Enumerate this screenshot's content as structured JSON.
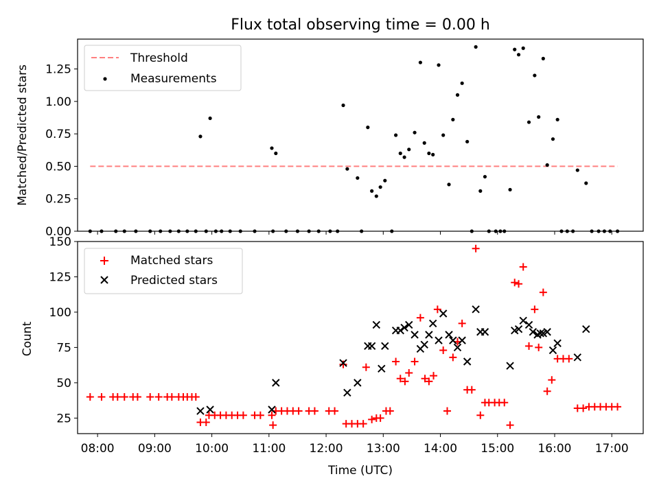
{
  "chart_data": [
    {
      "type": "scatter",
      "title": "Flux total observing time = 0.00 h",
      "xlabel": "",
      "ylabel": "Matched/Predicted stars",
      "xlim": [
        7.65,
        17.55
      ],
      "ylim": [
        0,
        1.48
      ],
      "yticks": [
        0.0,
        0.25,
        0.5,
        0.75,
        1.0,
        1.25
      ],
      "ytick_labels": [
        "0.00",
        "0.25",
        "0.50",
        "0.75",
        "1.00",
        "1.25"
      ],
      "legend_position": "upper-left",
      "threshold": {
        "name": "Threshold",
        "value": 0.5,
        "x_range": [
          7.87,
          17.1
        ],
        "color": "#ff7f7f"
      },
      "series": [
        {
          "name": "Measurements",
          "color": "#000000",
          "marker": "dot",
          "points": [
            [
              7.87,
              0
            ],
            [
              8.07,
              0
            ],
            [
              8.32,
              0
            ],
            [
              8.47,
              0
            ],
            [
              8.67,
              0
            ],
            [
              8.92,
              0
            ],
            [
              9.1,
              0
            ],
            [
              9.27,
              0
            ],
            [
              9.42,
              0
            ],
            [
              9.57,
              0
            ],
            [
              9.72,
              0
            ],
            [
              9.8,
              0.73
            ],
            [
              9.9,
              0
            ],
            [
              9.97,
              0.87
            ],
            [
              10.07,
              0
            ],
            [
              10.17,
              0
            ],
            [
              10.32,
              0
            ],
            [
              10.5,
              0
            ],
            [
              10.75,
              0
            ],
            [
              11.05,
              0.64
            ],
            [
              11.07,
              0
            ],
            [
              11.12,
              0.6
            ],
            [
              11.3,
              0
            ],
            [
              11.5,
              0
            ],
            [
              11.7,
              0
            ],
            [
              11.87,
              0
            ],
            [
              12.07,
              0
            ],
            [
              12.2,
              0
            ],
            [
              12.3,
              0.97
            ],
            [
              12.37,
              0.48
            ],
            [
              12.55,
              0.41
            ],
            [
              12.62,
              0
            ],
            [
              12.73,
              0.8
            ],
            [
              12.8,
              0.31
            ],
            [
              12.88,
              0.27
            ],
            [
              12.95,
              0.34
            ],
            [
              13.03,
              0.39
            ],
            [
              13.15,
              0
            ],
            [
              13.22,
              0.74
            ],
            [
              13.3,
              0.6
            ],
            [
              13.37,
              0.57
            ],
            [
              13.45,
              0.63
            ],
            [
              13.55,
              0.76
            ],
            [
              13.65,
              1.3
            ],
            [
              13.72,
              0.68
            ],
            [
              13.8,
              0.6
            ],
            [
              13.87,
              0.59
            ],
            [
              13.97,
              1.28
            ],
            [
              14.05,
              0.74
            ],
            [
              14.15,
              0.36
            ],
            [
              14.22,
              0.86
            ],
            [
              14.3,
              1.05
            ],
            [
              14.38,
              1.14
            ],
            [
              14.47,
              0.69
            ],
            [
              14.55,
              0
            ],
            [
              14.62,
              1.42
            ],
            [
              14.7,
              0.31
            ],
            [
              14.78,
              0.42
            ],
            [
              14.85,
              0
            ],
            [
              14.97,
              0
            ],
            [
              15.05,
              0
            ],
            [
              15.12,
              0
            ],
            [
              15.22,
              0.32
            ],
            [
              15.3,
              1.4
            ],
            [
              15.37,
              1.36
            ],
            [
              15.45,
              1.41
            ],
            [
              15.55,
              0.84
            ],
            [
              15.65,
              1.2
            ],
            [
              15.72,
              0.88
            ],
            [
              15.8,
              1.33
            ],
            [
              15.87,
              0.51
            ],
            [
              15.97,
              0.71
            ],
            [
              16.05,
              0.86
            ],
            [
              16.12,
              0
            ],
            [
              16.22,
              0
            ],
            [
              16.32,
              0
            ],
            [
              16.4,
              0.47
            ],
            [
              16.55,
              0.37
            ],
            [
              16.65,
              0
            ],
            [
              16.77,
              0
            ],
            [
              16.87,
              0
            ],
            [
              16.97,
              0
            ],
            [
              17.1,
              0
            ]
          ]
        }
      ]
    },
    {
      "type": "scatter",
      "title": "",
      "xlabel": "Time (UTC)",
      "ylabel": "Count",
      "xlim": [
        7.65,
        17.55
      ],
      "ylim": [
        14,
        150
      ],
      "xticks": [
        8,
        9,
        10,
        11,
        12,
        13,
        14,
        15,
        16,
        17
      ],
      "xtick_labels": [
        "08:00",
        "09:00",
        "10:00",
        "11:00",
        "12:00",
        "13:00",
        "14:00",
        "15:00",
        "16:00",
        "17:00"
      ],
      "yticks": [
        25,
        50,
        75,
        100,
        125,
        150
      ],
      "ytick_labels": [
        "25",
        "50",
        "75",
        "100",
        "125",
        "150"
      ],
      "legend_position": "upper-left",
      "series": [
        {
          "name": "Matched stars",
          "color": "#ff0000",
          "marker": "plus",
          "points": [
            [
              7.87,
              40
            ],
            [
              8.07,
              40
            ],
            [
              8.27,
              40
            ],
            [
              8.35,
              40
            ],
            [
              8.47,
              40
            ],
            [
              8.62,
              40
            ],
            [
              8.7,
              40
            ],
            [
              8.92,
              40
            ],
            [
              9.07,
              40
            ],
            [
              9.22,
              40
            ],
            [
              9.3,
              40
            ],
            [
              9.42,
              40
            ],
            [
              9.5,
              40
            ],
            [
              9.57,
              40
            ],
            [
              9.65,
              40
            ],
            [
              9.72,
              40
            ],
            [
              9.8,
              22
            ],
            [
              9.9,
              22
            ],
            [
              9.95,
              27
            ],
            [
              10.05,
              27
            ],
            [
              10.15,
              27
            ],
            [
              10.25,
              27
            ],
            [
              10.35,
              27
            ],
            [
              10.45,
              27
            ],
            [
              10.55,
              27
            ],
            [
              10.75,
              27
            ],
            [
              10.85,
              27
            ],
            [
              11.05,
              27
            ],
            [
              11.07,
              20
            ],
            [
              11.12,
              30
            ],
            [
              11.22,
              30
            ],
            [
              11.32,
              30
            ],
            [
              11.42,
              30
            ],
            [
              11.52,
              30
            ],
            [
              11.7,
              30
            ],
            [
              11.8,
              30
            ],
            [
              12.05,
              30
            ],
            [
              12.15,
              30
            ],
            [
              12.3,
              63
            ],
            [
              12.35,
              21
            ],
            [
              12.45,
              21
            ],
            [
              12.55,
              21
            ],
            [
              12.65,
              21
            ],
            [
              12.7,
              61
            ],
            [
              12.8,
              24
            ],
            [
              12.88,
              25
            ],
            [
              12.95,
              25
            ],
            [
              13.05,
              30
            ],
            [
              13.12,
              30
            ],
            [
              13.22,
              65
            ],
            [
              13.3,
              53
            ],
            [
              13.38,
              51
            ],
            [
              13.45,
              57
            ],
            [
              13.55,
              65
            ],
            [
              13.65,
              96
            ],
            [
              13.73,
              53
            ],
            [
              13.8,
              51
            ],
            [
              13.88,
              55
            ],
            [
              13.95,
              102
            ],
            [
              14.05,
              73
            ],
            [
              14.12,
              30
            ],
            [
              14.22,
              68
            ],
            [
              14.3,
              79
            ],
            [
              14.38,
              92
            ],
            [
              14.47,
              45
            ],
            [
              14.55,
              45
            ],
            [
              14.62,
              145
            ],
            [
              14.7,
              27
            ],
            [
              14.78,
              36
            ],
            [
              14.85,
              36
            ],
            [
              14.95,
              36
            ],
            [
              15.03,
              36
            ],
            [
              15.12,
              36
            ],
            [
              15.22,
              20
            ],
            [
              15.3,
              121
            ],
            [
              15.37,
              120
            ],
            [
              15.45,
              132
            ],
            [
              15.55,
              76
            ],
            [
              15.65,
              102
            ],
            [
              15.72,
              75
            ],
            [
              15.8,
              114
            ],
            [
              15.87,
              44
            ],
            [
              15.95,
              52
            ],
            [
              16.05,
              67
            ],
            [
              16.15,
              67
            ],
            [
              16.25,
              67
            ],
            [
              16.4,
              32
            ],
            [
              16.5,
              32
            ],
            [
              16.6,
              33
            ],
            [
              16.7,
              33
            ],
            [
              16.8,
              33
            ],
            [
              16.9,
              33
            ],
            [
              17.0,
              33
            ],
            [
              17.1,
              33
            ]
          ]
        },
        {
          "name": "Predicted stars",
          "color": "#000000",
          "marker": "x",
          "points": [
            [
              9.8,
              30
            ],
            [
              9.97,
              31
            ],
            [
              11.05,
              31
            ],
            [
              11.12,
              50
            ],
            [
              12.3,
              64
            ],
            [
              12.37,
              43
            ],
            [
              12.55,
              50
            ],
            [
              12.73,
              76
            ],
            [
              12.8,
              76
            ],
            [
              12.88,
              91
            ],
            [
              12.97,
              60
            ],
            [
              13.03,
              76
            ],
            [
              13.22,
              87
            ],
            [
              13.3,
              87
            ],
            [
              13.37,
              89
            ],
            [
              13.45,
              91
            ],
            [
              13.55,
              84
            ],
            [
              13.65,
              74
            ],
            [
              13.72,
              77
            ],
            [
              13.8,
              84
            ],
            [
              13.87,
              92
            ],
            [
              13.97,
              80
            ],
            [
              14.05,
              99
            ],
            [
              14.15,
              84
            ],
            [
              14.22,
              80
            ],
            [
              14.3,
              75
            ],
            [
              14.38,
              80
            ],
            [
              14.47,
              65
            ],
            [
              14.62,
              102
            ],
            [
              14.7,
              86
            ],
            [
              14.78,
              86
            ],
            [
              15.22,
              62
            ],
            [
              15.3,
              87
            ],
            [
              15.37,
              88
            ],
            [
              15.45,
              94
            ],
            [
              15.55,
              91
            ],
            [
              15.62,
              86
            ],
            [
              15.7,
              84
            ],
            [
              15.75,
              85
            ],
            [
              15.8,
              85
            ],
            [
              15.87,
              86
            ],
            [
              15.97,
              73
            ],
            [
              16.05,
              78
            ],
            [
              16.4,
              68
            ],
            [
              16.55,
              88
            ]
          ]
        }
      ]
    }
  ]
}
